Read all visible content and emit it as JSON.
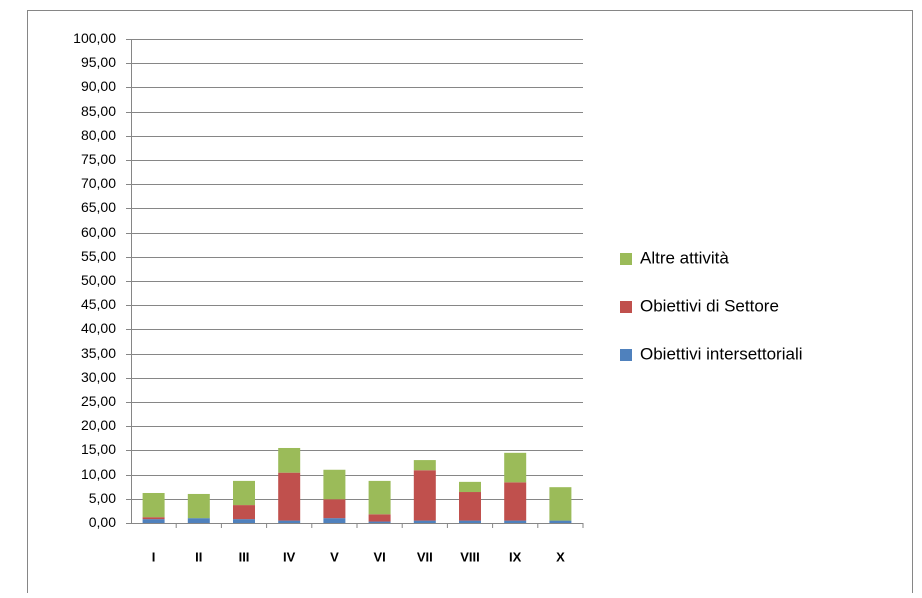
{
  "chart_data": {
    "type": "stacked-bar",
    "categories": [
      "I",
      "II",
      "III",
      "IV",
      "V",
      "VI",
      "VII",
      "VIII",
      "IX",
      "X"
    ],
    "series": [
      {
        "name": "Obiettivi intersettoriali",
        "color": "#4f81bd",
        "values": [
          0.8,
          1.0,
          0.8,
          0.5,
          1.0,
          0.3,
          0.5,
          0.5,
          0.5,
          0.5
        ]
      },
      {
        "name": "Obiettivi di Settore",
        "color": "#c0504d",
        "values": [
          0.4,
          0,
          2.9,
          9.9,
          3.9,
          1.5,
          10.4,
          5.9,
          7.9,
          0
        ]
      },
      {
        "name": "Altre attività",
        "color": "#9bbb59",
        "values": [
          5.0,
          5.0,
          5.0,
          5.1,
          6.1,
          6.9,
          2.1,
          2.1,
          6.1,
          6.9
        ]
      }
    ],
    "ylim": [
      0,
      100
    ],
    "yticks": [
      {
        "value": 0,
        "label": "0,00"
      },
      {
        "value": 5,
        "label": "5,00"
      },
      {
        "value": 10,
        "label": "10,00"
      },
      {
        "value": 15,
        "label": "15,00"
      },
      {
        "value": 20,
        "label": "20,00"
      },
      {
        "value": 25,
        "label": "25,00"
      },
      {
        "value": 30,
        "label": "30,00"
      },
      {
        "value": 35,
        "label": "35,00"
      },
      {
        "value": 40,
        "label": "40,00"
      },
      {
        "value": 45,
        "label": "45,00"
      },
      {
        "value": 50,
        "label": "50,00"
      },
      {
        "value": 55,
        "label": "55,00"
      },
      {
        "value": 60,
        "label": "60,00"
      },
      {
        "value": 65,
        "label": "65,00"
      },
      {
        "value": 70,
        "label": "70,00"
      },
      {
        "value": 75,
        "label": "75,00"
      },
      {
        "value": 80,
        "label": "80,00"
      },
      {
        "value": 85,
        "label": "85,00"
      },
      {
        "value": 90,
        "label": "90,00"
      },
      {
        "value": 95,
        "label": "95,00"
      },
      {
        "value": 100,
        "label": "100,00"
      }
    ],
    "grid": true,
    "legend": "right"
  }
}
